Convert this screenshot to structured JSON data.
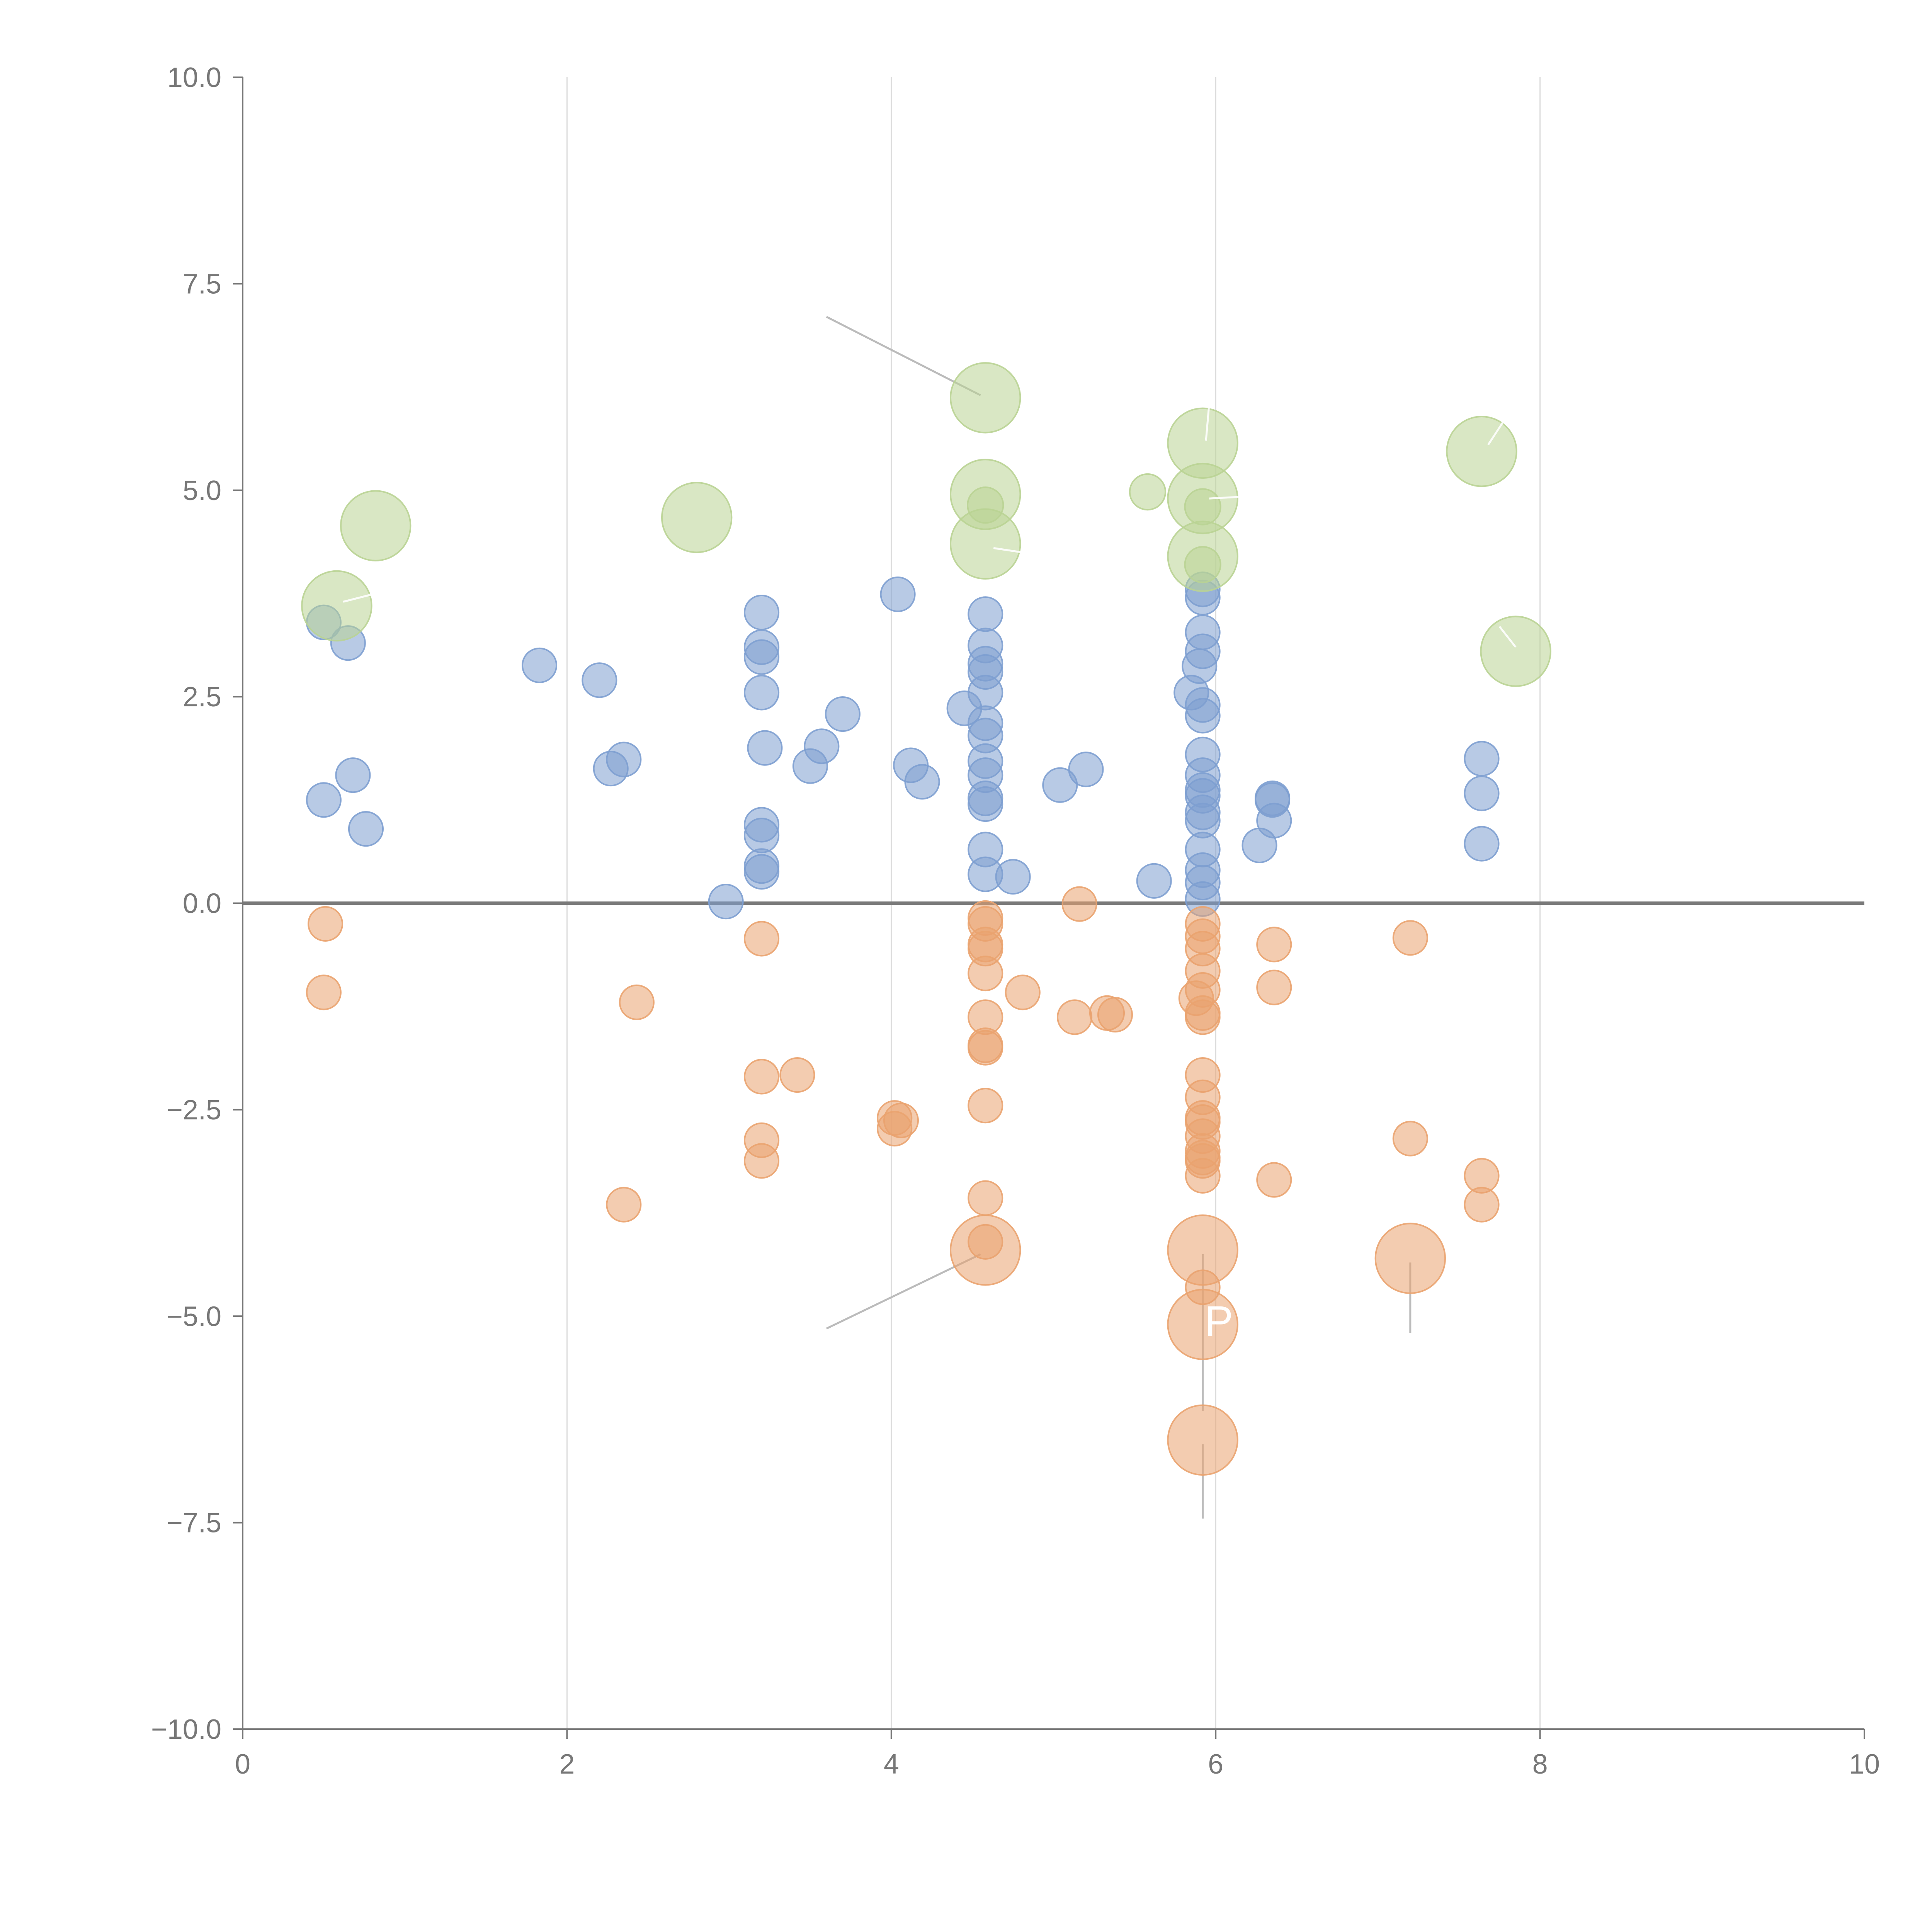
{
  "chart_data": {
    "type": "scatter",
    "title": "",
    "xlabel": "",
    "ylabel": "",
    "xlim": [
      0,
      10
    ],
    "ylim": [
      -10,
      10
    ],
    "grid": "vertical",
    "legend": "none",
    "x_ticks": [
      "0",
      "2",
      "4",
      "6",
      "8",
      "10"
    ],
    "y_ticks": [
      "−10.0",
      "−7.5",
      "−5.0",
      "−2.5",
      "0.0",
      "2.5",
      "5.0",
      "7.5",
      "10.0"
    ],
    "colors": {
      "blue": "#7d9fd0",
      "orange": "#eaa36f",
      "green": "#b9d393"
    },
    "series": [
      {
        "name": "positive",
        "color": "#7d9fd0",
        "radius": 0.105,
        "points": [
          [
            0.5,
            3.4
          ],
          [
            0.65,
            3.15
          ],
          [
            0.5,
            1.25
          ],
          [
            0.68,
            1.55
          ],
          [
            0.76,
            0.9
          ],
          [
            1.83,
            2.88
          ],
          [
            2.2,
            2.7
          ],
          [
            2.27,
            1.63
          ],
          [
            2.35,
            1.74
          ],
          [
            2.98,
            0.02
          ],
          [
            3.2,
            3.52
          ],
          [
            3.2,
            3.1
          ],
          [
            3.2,
            2.98
          ],
          [
            3.2,
            2.55
          ],
          [
            3.22,
            1.88
          ],
          [
            3.2,
            0.95
          ],
          [
            3.2,
            0.82
          ],
          [
            3.2,
            0.45
          ],
          [
            3.2,
            0.38
          ],
          [
            3.5,
            1.66
          ],
          [
            3.57,
            1.9
          ],
          [
            3.7,
            2.29
          ],
          [
            4.04,
            3.74
          ],
          [
            4.12,
            1.67
          ],
          [
            4.19,
            1.47
          ],
          [
            4.45,
            2.36
          ],
          [
            4.58,
            3.5
          ],
          [
            4.58,
            3.12
          ],
          [
            4.58,
            2.9
          ],
          [
            4.58,
            2.8
          ],
          [
            4.58,
            2.55
          ],
          [
            4.58,
            2.18
          ],
          [
            4.58,
            2.03
          ],
          [
            4.58,
            1.72
          ],
          [
            4.58,
            1.55
          ],
          [
            4.58,
            1.27
          ],
          [
            4.58,
            1.2
          ],
          [
            4.58,
            0.65
          ],
          [
            4.58,
            0.35
          ],
          [
            4.75,
            0.32
          ],
          [
            5.04,
            1.43
          ],
          [
            5.2,
            1.62
          ],
          [
            5.62,
            0.27
          ],
          [
            5.85,
            2.55
          ],
          [
            5.9,
            2.87
          ],
          [
            5.92,
            3.8
          ],
          [
            5.92,
            3.7
          ],
          [
            5.92,
            3.28
          ],
          [
            5.92,
            3.05
          ],
          [
            5.92,
            2.4
          ],
          [
            5.92,
            2.27
          ],
          [
            5.92,
            1.8
          ],
          [
            5.92,
            1.55
          ],
          [
            5.92,
            1.37
          ],
          [
            5.92,
            1.3
          ],
          [
            5.92,
            1.1
          ],
          [
            5.92,
            1.0
          ],
          [
            5.92,
            0.65
          ],
          [
            5.92,
            0.4
          ],
          [
            5.92,
            0.25
          ],
          [
            5.92,
            0.05
          ],
          [
            6.27,
            0.7
          ],
          [
            6.35,
            1.27
          ],
          [
            6.35,
            1.25
          ],
          [
            6.36,
            1.0
          ],
          [
            7.64,
            1.75
          ],
          [
            7.64,
            1.33
          ],
          [
            7.64,
            0.72
          ]
        ]
      },
      {
        "name": "negative",
        "color": "#eaa36f",
        "radius": 0.105,
        "points": [
          [
            0.51,
            -0.25
          ],
          [
            0.5,
            -1.08
          ],
          [
            2.43,
            -1.2
          ],
          [
            2.35,
            -3.65
          ],
          [
            3.2,
            -0.43
          ],
          [
            3.2,
            -2.1
          ],
          [
            3.42,
            -2.08
          ],
          [
            3.2,
            -2.87
          ],
          [
            3.2,
            -3.12
          ],
          [
            4.02,
            -2.6
          ],
          [
            4.06,
            -2.63
          ],
          [
            4.02,
            -2.73
          ],
          [
            4.58,
            -0.18
          ],
          [
            4.58,
            -0.25
          ],
          [
            4.58,
            -0.5
          ],
          [
            4.58,
            -0.55
          ],
          [
            4.58,
            -0.85
          ],
          [
            4.58,
            -1.38
          ],
          [
            4.58,
            -1.72
          ],
          [
            4.58,
            -1.75
          ],
          [
            4.58,
            -2.45
          ],
          [
            4.58,
            -3.57
          ],
          [
            4.58,
            -4.1
          ],
          [
            4.81,
            -1.08
          ],
          [
            5.16,
            -0.01
          ],
          [
            5.13,
            -1.38
          ],
          [
            5.33,
            -1.33
          ],
          [
            5.38,
            -1.35
          ],
          [
            5.92,
            -0.25
          ],
          [
            5.92,
            -0.4
          ],
          [
            5.92,
            -0.55
          ],
          [
            5.92,
            -0.82
          ],
          [
            5.92,
            -1.05
          ],
          [
            5.88,
            -1.15
          ],
          [
            5.92,
            -1.33
          ],
          [
            5.92,
            -1.38
          ],
          [
            5.92,
            -2.08
          ],
          [
            5.92,
            -2.35
          ],
          [
            5.92,
            -2.6
          ],
          [
            5.92,
            -2.65
          ],
          [
            5.92,
            -2.82
          ],
          [
            5.92,
            -3.0
          ],
          [
            5.92,
            -3.08
          ],
          [
            5.92,
            -3.12
          ],
          [
            5.92,
            -3.3
          ],
          [
            5.92,
            -4.65
          ],
          [
            6.36,
            -0.5
          ],
          [
            6.36,
            -1.02
          ],
          [
            6.36,
            -3.35
          ],
          [
            7.2,
            -0.42
          ],
          [
            7.2,
            -2.85
          ],
          [
            7.64,
            -3.3
          ],
          [
            7.64,
            -3.65
          ]
        ]
      },
      {
        "name": "positive-large",
        "color": "#b9d393",
        "radius": 0.215,
        "points": [
          [
            0.58,
            3.6
          ],
          [
            0.82,
            4.57
          ],
          [
            2.8,
            4.67
          ],
          [
            4.58,
            6.12
          ],
          [
            4.58,
            4.95
          ],
          [
            4.58,
            4.35
          ],
          [
            5.92,
            5.57
          ],
          [
            5.92,
            4.9
          ],
          [
            5.92,
            4.2
          ],
          [
            7.64,
            5.47
          ],
          [
            7.85,
            3.05
          ]
        ]
      },
      {
        "name": "positive-small",
        "color": "#b9d393",
        "radius": 0.11,
        "points": [
          [
            4.58,
            4.82
          ],
          [
            5.58,
            4.98
          ],
          [
            5.92,
            4.8
          ],
          [
            5.92,
            4.1
          ]
        ]
      },
      {
        "name": "negative-large",
        "color": "#eaa36f",
        "radius": 0.215,
        "points": [
          [
            4.58,
            -4.2
          ],
          [
            5.92,
            -4.2
          ],
          [
            5.92,
            -5.1
          ],
          [
            5.92,
            -6.5
          ],
          [
            7.2,
            -4.3
          ]
        ]
      }
    ],
    "leader_lines": [
      {
        "from": [
          3.6,
          7.1
        ],
        "to": [
          4.55,
          6.15
        ],
        "style": "gray"
      },
      {
        "from": [
          3.6,
          -5.15
        ],
        "to": [
          4.55,
          -4.25
        ],
        "style": "gray"
      },
      {
        "from": [
          5.92,
          -4.25
        ],
        "to": [
          5.92,
          -6.15
        ],
        "style": "gray"
      },
      {
        "from": [
          5.92,
          -6.55
        ],
        "to": [
          5.92,
          -7.45
        ],
        "style": "gray"
      },
      {
        "from": [
          7.2,
          -4.35
        ],
        "to": [
          7.2,
          -5.2
        ],
        "style": "gray"
      },
      {
        "from": [
          0.62,
          3.65
        ],
        "to": [
          0.82,
          3.75
        ],
        "style": "light"
      },
      {
        "from": [
          4.63,
          4.3
        ],
        "to": [
          4.8,
          4.25
        ],
        "style": "light"
      },
      {
        "from": [
          5.94,
          5.6
        ],
        "to": [
          5.96,
          6.05
        ],
        "style": "light"
      },
      {
        "from": [
          5.96,
          4.9
        ],
        "to": [
          6.15,
          4.92
        ],
        "style": "light"
      },
      {
        "from": [
          7.68,
          5.55
        ],
        "to": [
          7.78,
          5.85
        ],
        "style": "light"
      },
      {
        "from": [
          7.85,
          3.1
        ],
        "to": [
          7.75,
          3.35
        ],
        "style": "light"
      }
    ],
    "annotations": [
      {
        "text": "P",
        "x": 6.02,
        "y": -5.05
      }
    ]
  }
}
